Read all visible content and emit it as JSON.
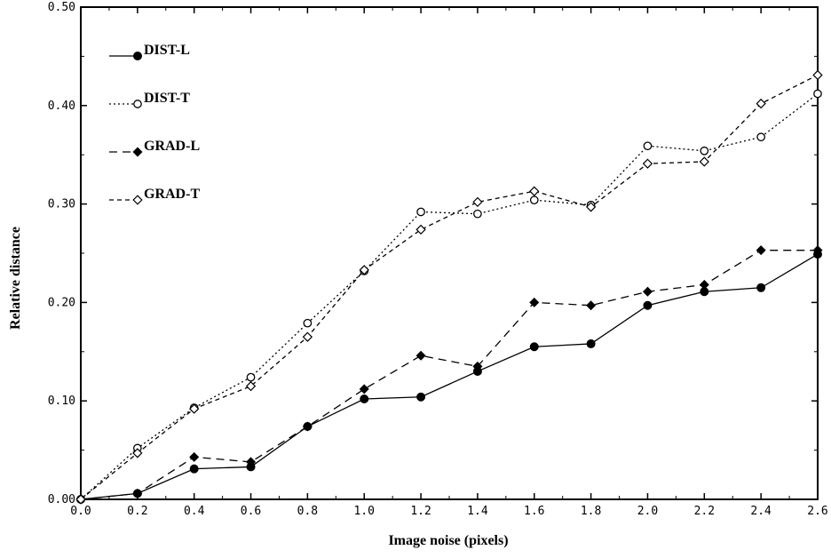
{
  "chart_data": {
    "type": "line",
    "title": "",
    "xlabel": "Image noise (pixels)",
    "ylabel": "Relative distance",
    "xlim": [
      0.0,
      2.6
    ],
    "ylim": [
      0.0,
      0.5
    ],
    "grid": false,
    "legend_position": "top-left",
    "x": [
      0.0,
      0.2,
      0.4,
      0.6,
      0.8,
      1.0,
      1.2,
      1.4,
      1.6,
      1.8,
      2.0,
      2.2,
      2.4,
      2.6
    ],
    "x_tick_labels": [
      "0.0",
      "0.2",
      "0.4",
      "0.6",
      "0.8",
      "1.0",
      "1.2",
      "1.4",
      "1.6",
      "1.8",
      "2.0",
      "2.2",
      "2.4",
      "2.6"
    ],
    "y_ticks": [
      0.0,
      0.1,
      0.2,
      0.3,
      0.4,
      0.5
    ],
    "y_tick_labels": [
      "0.00",
      "0.10",
      "0.20",
      "0.30",
      "0.40",
      "0.50"
    ],
    "series": [
      {
        "name": "DIST-L",
        "line_style": "solid",
        "marker": "filled-circle",
        "values": [
          0.0,
          0.006,
          0.031,
          0.033,
          0.074,
          0.102,
          0.104,
          0.13,
          0.155,
          0.158,
          0.197,
          0.211,
          0.215,
          0.249
        ]
      },
      {
        "name": "DIST-T",
        "line_style": "dotted",
        "marker": "open-circle",
        "values": [
          0.0,
          0.052,
          0.093,
          0.124,
          0.179,
          0.232,
          0.292,
          0.29,
          0.304,
          0.299,
          0.359,
          0.354,
          0.368,
          0.412
        ]
      },
      {
        "name": "GRAD-L",
        "line_style": "dashed",
        "marker": "filled-diamond",
        "values": [
          0.0,
          0.006,
          0.043,
          0.038,
          0.074,
          0.112,
          0.146,
          0.135,
          0.2,
          0.197,
          0.211,
          0.218,
          0.253,
          0.253
        ]
      },
      {
        "name": "GRAD-T",
        "line_style": "short-dashed",
        "marker": "open-diamond",
        "values": [
          0.0,
          0.047,
          0.092,
          0.115,
          0.165,
          0.233,
          0.274,
          0.302,
          0.313,
          0.297,
          0.341,
          0.343,
          0.402,
          0.431
        ]
      }
    ]
  }
}
